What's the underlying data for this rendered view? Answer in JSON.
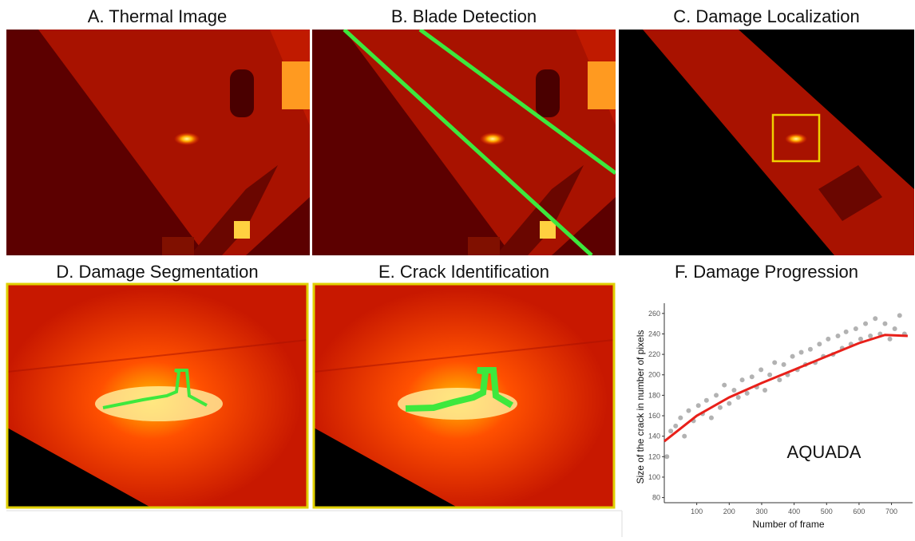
{
  "panels": [
    {
      "title": "A. Thermal Image"
    },
    {
      "title": "B. Blade Detection"
    },
    {
      "title": "C. Damage Localization"
    },
    {
      "title": "D. Damage Segmentation"
    },
    {
      "title": "E. Crack Identification"
    }
  ],
  "chart_data": {
    "type": "scatter",
    "title": "F. Damage Progression",
    "xlabel": "Number of frame",
    "ylabel": "Size of the crack in number of pixels",
    "annotation": "AQUADA",
    "xlim": [
      0,
      765
    ],
    "ylim": [
      75,
      270
    ],
    "xticks": [
      100,
      200,
      300,
      400,
      500,
      600,
      700
    ],
    "yticks": [
      80,
      100,
      120,
      140,
      160,
      180,
      200,
      220,
      240,
      260
    ],
    "series": [
      {
        "color": "#555555",
        "x": [
          8,
          20,
          35,
          50,
          62,
          75,
          90,
          105,
          118,
          130,
          145,
          160,
          172,
          185,
          200,
          215,
          228,
          240,
          255,
          270,
          285,
          298,
          310,
          325,
          340,
          355,
          368,
          380,
          395,
          410,
          422,
          435,
          450,
          465,
          478,
          490,
          505,
          520,
          535,
          548,
          560,
          575,
          590,
          605,
          620,
          635,
          650,
          665,
          680,
          695,
          710,
          725,
          740
        ],
        "values": [
          120,
          145,
          150,
          158,
          140,
          165,
          155,
          170,
          162,
          175,
          158,
          180,
          168,
          190,
          172,
          185,
          178,
          195,
          182,
          198,
          188,
          205,
          185,
          200,
          212,
          195,
          210,
          200,
          218,
          205,
          222,
          210,
          225,
          212,
          230,
          218,
          235,
          220,
          238,
          226,
          242,
          230,
          245,
          235,
          250,
          238,
          255,
          240,
          250,
          235,
          245,
          258,
          240
        ]
      },
      {
        "color": "#e8201a",
        "style": "line",
        "x": [
          0,
          100,
          200,
          300,
          400,
          500,
          600,
          680,
          750
        ],
        "values": [
          135,
          160,
          178,
          192,
          205,
          218,
          231,
          239,
          238
        ]
      }
    ]
  }
}
